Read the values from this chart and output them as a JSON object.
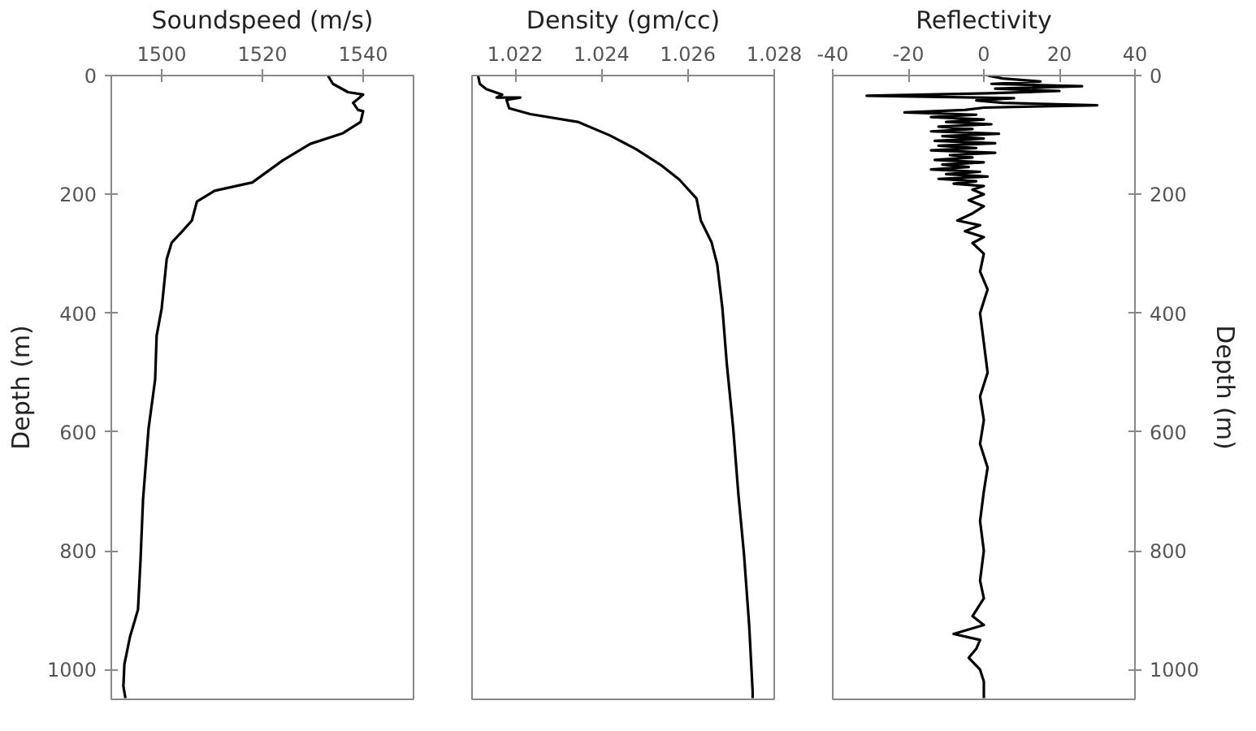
{
  "chart_data": [
    {
      "type": "line",
      "xlabel": "Soundspeed (m/s)",
      "ylabel": "Depth (m)",
      "xlim": [
        1490,
        1550
      ],
      "xticks": [
        1500,
        1520,
        1540
      ],
      "ylim": [
        1050,
        0
      ],
      "yticks": [
        0,
        200,
        400,
        600,
        800,
        1000
      ],
      "grid": false,
      "series": [
        {
          "color": "#000000",
          "x": [
            1533,
            1534,
            1537,
            1540,
            1538,
            1539,
            1540,
            1539.5,
            1536,
            1529.5,
            1524,
            1518,
            1510.5,
            1507,
            1506,
            1504,
            1502,
            1501,
            1500,
            1499,
            1498.7,
            1497.4,
            1496.3,
            1495.8,
            1495.3,
            1493.7,
            1492.6,
            1492.4,
            1492.8
          ],
          "values": [
            0,
            14,
            28,
            32,
            46,
            58,
            60,
            78,
            97,
            115,
            143,
            180,
            194,
            212,
            244,
            263,
            281,
            309,
            392,
            438,
            512,
            594,
            714,
            816,
            899,
            945,
            991,
            1028,
            1048
          ]
        }
      ]
    },
    {
      "type": "line",
      "xlabel": "Density (gm/cc)",
      "xlim": [
        1.021,
        1.028
      ],
      "xticks": [
        1.022,
        1.024,
        1.026,
        1.028
      ],
      "ylim": [
        1050,
        0
      ],
      "yticks": [
        0,
        200,
        400,
        600,
        800,
        1000
      ],
      "tick_labels": "x",
      "grid": false,
      "series": [
        {
          "color": "#000000",
          "x": [
            1.02114,
            1.02118,
            1.02133,
            1.0217,
            1.02157,
            1.02212,
            1.0218,
            1.02186,
            1.02235,
            1.02345,
            1.0242,
            1.0248,
            1.0254,
            1.0258,
            1.0262,
            1.0263,
            1.02655,
            1.02668,
            1.0268,
            1.0269,
            1.02705,
            1.02717,
            1.0273,
            1.02742,
            1.0275,
            1.0275
          ],
          "values": [
            0,
            14,
            23,
            32,
            37,
            37,
            41,
            55,
            65,
            78,
            101,
            124,
            152,
            175,
            207,
            244,
            281,
            318,
            392,
            484,
            594,
            705,
            806,
            926,
            1037,
            1048
          ]
        }
      ]
    },
    {
      "type": "line",
      "xlabel": "Reflectivity",
      "y2label": "Depth (m)",
      "xlim": [
        -40,
        40
      ],
      "xticks": [
        -40,
        -20,
        0,
        20,
        40
      ],
      "y2lim": [
        1050,
        0
      ],
      "y2ticks": [
        0,
        200,
        400,
        600,
        800,
        1000
      ],
      "grid": false,
      "series": [
        {
          "color": "#000000",
          "axis": "y2",
          "x": [
            1,
            5,
            15,
            2,
            26,
            3,
            20,
            1,
            -31,
            8,
            -2,
            5,
            30,
            0,
            -5,
            -21,
            -2,
            -14,
            0,
            -10,
            2,
            -12,
            -3,
            -14,
            4,
            -11,
            0,
            -13,
            3,
            -12,
            -2,
            -14,
            3,
            -9,
            -3,
            -13,
            0,
            -11,
            -4,
            -14,
            -1,
            -10,
            1,
            -12,
            -2,
            -8,
            0,
            -3,
            0,
            -4,
            0,
            -3,
            -7,
            -1,
            -5,
            0,
            -3,
            0,
            -1,
            1,
            -1,
            0,
            1,
            -1,
            0,
            -1,
            1,
            0,
            -1,
            0,
            -1,
            0,
            -3,
            0,
            -8,
            -1,
            -2,
            -4,
            -1,
            0,
            0
          ],
          "values": [
            0,
            5,
            10,
            14,
            18,
            22,
            26,
            30,
            34,
            38,
            42,
            46,
            50,
            54,
            58,
            62,
            66,
            70,
            74,
            78,
            82,
            86,
            90,
            94,
            98,
            102,
            106,
            110,
            114,
            118,
            122,
            126,
            130,
            134,
            138,
            142,
            146,
            150,
            154,
            158,
            162,
            166,
            170,
            174,
            178,
            182,
            186,
            192,
            200,
            210,
            220,
            232,
            244,
            252,
            262,
            272,
            282,
            300,
            330,
            360,
            400,
            450,
            500,
            540,
            580,
            620,
            660,
            700,
            750,
            800,
            850,
            880,
            910,
            925,
            940,
            950,
            965,
            980,
            1000,
            1020,
            1048
          ]
        }
      ]
    }
  ]
}
